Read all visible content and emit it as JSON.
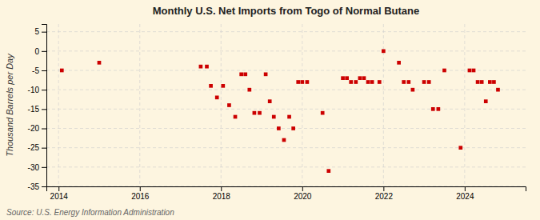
{
  "chart_data": {
    "type": "scatter",
    "title": "Monthly U.S. Net Imports from Togo of Normal Butane",
    "ylabel": "Thousand Barrels per Day",
    "source": "Source: U.S. Energy Information Administration",
    "color": "#cc0000",
    "marker": "square",
    "grid": true,
    "xlim": [
      2013.7,
      2025.5
    ],
    "ylim": [
      -35,
      7
    ],
    "xticks": [
      2014,
      2016,
      2018,
      2020,
      2022,
      2024
    ],
    "yticks": [
      5,
      0,
      -5,
      -10,
      -15,
      -20,
      -25,
      -30,
      -35
    ],
    "x": [
      2014.08,
      2015.0,
      2017.5,
      2017.65,
      2017.75,
      2017.9,
      2018.05,
      2018.2,
      2018.35,
      2018.5,
      2018.6,
      2018.7,
      2018.82,
      2018.95,
      2019.1,
      2019.2,
      2019.3,
      2019.42,
      2019.55,
      2019.68,
      2019.78,
      2019.9,
      2020.0,
      2020.12,
      2020.5,
      2020.65,
      2021.0,
      2021.1,
      2021.2,
      2021.32,
      2021.42,
      2021.52,
      2021.62,
      2021.72,
      2021.9,
      2022.0,
      2022.38,
      2022.5,
      2022.62,
      2022.72,
      2023.0,
      2023.12,
      2023.22,
      2023.35,
      2023.5,
      2023.9,
      2024.12,
      2024.22,
      2024.32,
      2024.42,
      2024.52,
      2024.62,
      2024.72,
      2024.82
    ],
    "values": [
      -5,
      -3,
      -4,
      -4,
      -9,
      -12,
      -9,
      -14,
      -17,
      -6,
      -6,
      -10,
      -16,
      -16,
      -6,
      -13,
      -17,
      -20,
      -23,
      -17,
      -20,
      -8,
      -8,
      -8,
      -16,
      -31,
      -7,
      -7,
      -8,
      -8,
      -7,
      -7,
      -8,
      -8,
      -8,
      0,
      -3,
      -8,
      -8,
      -10,
      -8,
      -8,
      -15,
      -15,
      -5,
      -25,
      -5,
      -5,
      -8,
      -8,
      -13,
      -8,
      -8,
      -10
    ]
  }
}
